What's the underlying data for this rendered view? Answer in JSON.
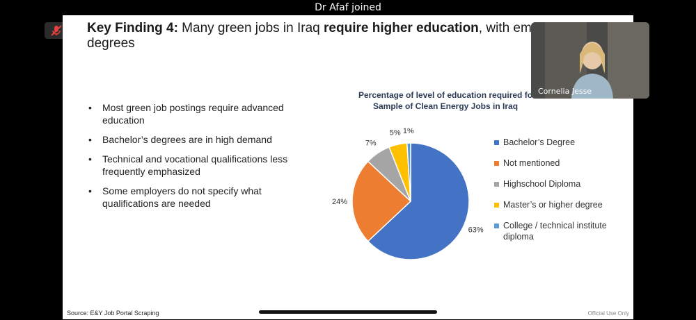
{
  "meeting": {
    "notification": "Dr Afaf  joined",
    "participant_name": "Cornelia Jesse",
    "mic_icon": "mic-muted-icon"
  },
  "slide": {
    "title_bold_1": "Key Finding 4:",
    "title_regular_1": " Many green jobs in Iraq ",
    "title_bold_2": "require higher education",
    "title_regular_2": ", with emphas",
    "title_line2": "degrees",
    "bullets": [
      "Most green job postings require advanced education",
      "Bachelor’s degrees are in high demand",
      "Technical and vocational qualifications less frequently emphasized",
      "Some employers do not specify what qualifications are needed"
    ],
    "source": "Source: E&Y Job Portal Scraping",
    "footer_label": "Official Use Only"
  },
  "chart_data": {
    "type": "pie",
    "title_line1": "Percentage of level of education required fo",
    "title_line2": "Sample of Clean Energy Jobs in Iraq",
    "categories": [
      "Bachelor’s Degree",
      "Not mentioned",
      "Highschool Diploma",
      "Master’s or higher degree",
      "College / technical institute diploma"
    ],
    "values": [
      63,
      24,
      7,
      5,
      1
    ],
    "labels": [
      "63%",
      "24%",
      "7%",
      "5%",
      "1%"
    ],
    "colors": [
      "#4472C4",
      "#ED7D31",
      "#A5A5A5",
      "#FFC000",
      "#5B9BD5"
    ],
    "legend_position": "right"
  }
}
